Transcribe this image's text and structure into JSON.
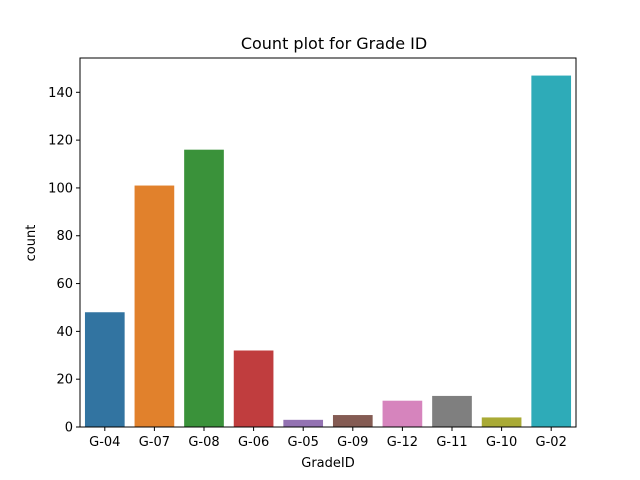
{
  "chart_data": {
    "type": "bar",
    "title": "Count plot for Grade ID",
    "xlabel": "GradeID",
    "ylabel": "count",
    "categories": [
      "G-04",
      "G-07",
      "G-08",
      "G-06",
      "G-05",
      "G-09",
      "G-12",
      "G-11",
      "G-10",
      "G-02"
    ],
    "values": [
      48,
      101,
      116,
      32,
      3,
      5,
      11,
      13,
      4,
      147
    ],
    "colors": [
      "#3274a1",
      "#e1812c",
      "#3a923a",
      "#c03d3e",
      "#9372b2",
      "#845b53",
      "#d684bd",
      "#7f7f7f",
      "#a9aa35",
      "#2eabb8"
    ],
    "yticks": [
      0,
      20,
      40,
      60,
      80,
      100,
      120,
      140
    ],
    "ylim": [
      0,
      154.35
    ],
    "grid": false,
    "legend": "none"
  }
}
